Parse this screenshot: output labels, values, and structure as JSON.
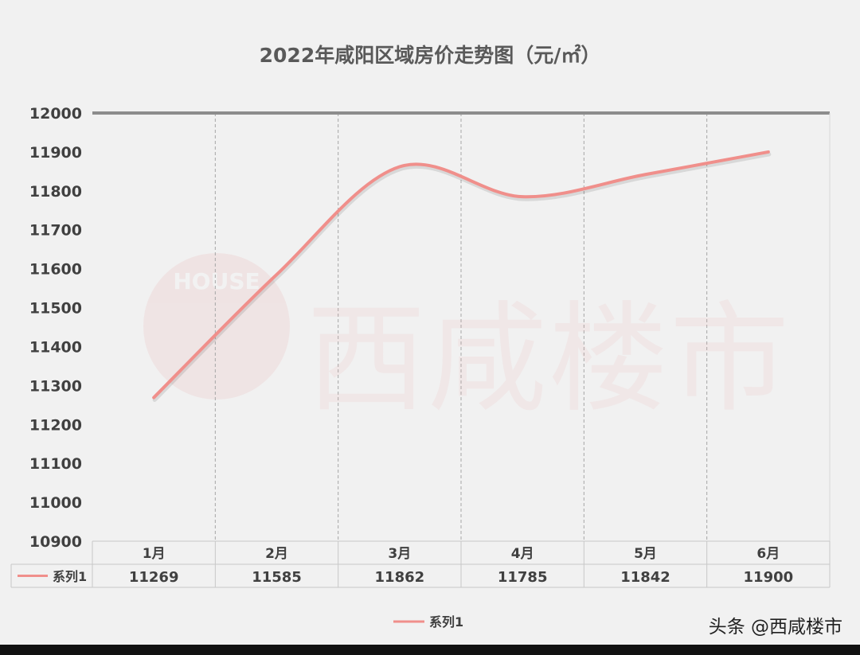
{
  "chart_data": {
    "type": "line",
    "title": "2022年咸阳区域房价走势图（元/㎡）",
    "categories": [
      "1月",
      "2月",
      "3月",
      "4月",
      "5月",
      "6月"
    ],
    "series": [
      {
        "name": "系列1",
        "values": [
          11269,
          11585,
          11862,
          11785,
          11842,
          11900
        ]
      }
    ],
    "ylim": [
      10900,
      12000
    ],
    "yticks": [
      10900,
      11000,
      11100,
      11200,
      11300,
      11400,
      11500,
      11600,
      11700,
      11800,
      11900,
      12000
    ],
    "line_color": "#f08f8b",
    "data_table": true,
    "legend_position": "bottom",
    "vertical_gridlines": "dashed"
  },
  "watermark": {
    "badge_text": "HOUSE",
    "text": "西咸楼市"
  },
  "footer": {
    "credit": "头条 @西咸楼市"
  }
}
